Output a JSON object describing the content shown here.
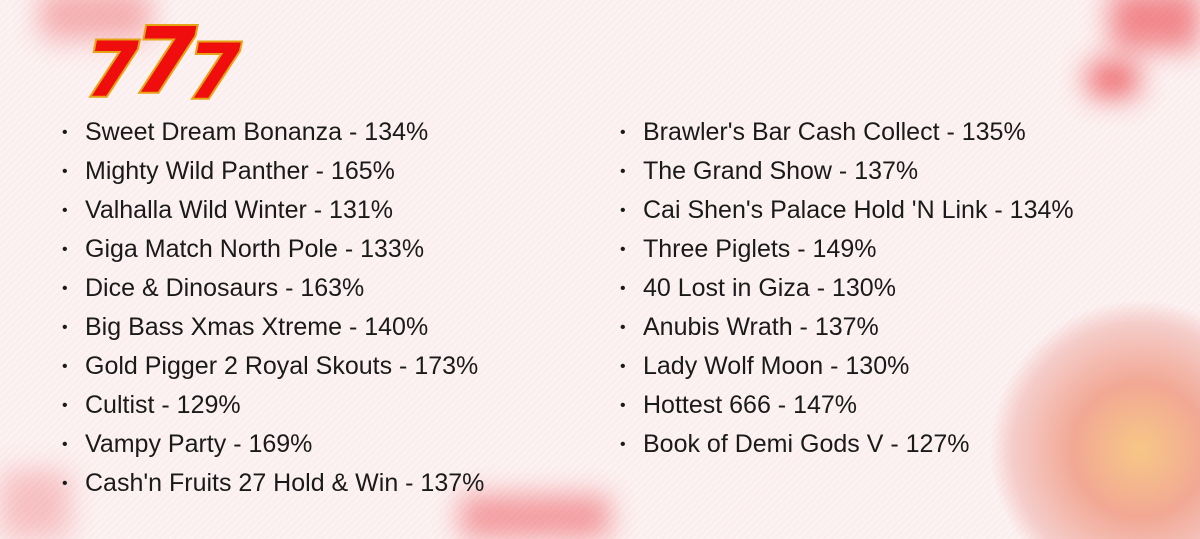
{
  "logo": {
    "text": "777",
    "icon": "slot-777-logo"
  },
  "colors": {
    "background": "#fbeeee",
    "accent": "#e8323a",
    "gold": "#f2b21c"
  },
  "left_list": [
    "Sweet Dream Bonanza - 134%",
    "Mighty Wild Panther - 165%",
    "Valhalla Wild Winter - 131%",
    "Giga Match North Pole - 133%",
    "Dice & Dinosaurs - 163%",
    "Big Bass Xmas Xtreme - 140%",
    "Gold Pigger 2 Royal Skouts - 173%",
    "Cultist - 129%",
    "Vampy Party - 169%",
    "Cash'n Fruits 27 Hold & Win - 137%"
  ],
  "right_list": [
    "Brawler's Bar Cash Collect - 135%",
    "The Grand Show - 137%",
    "Cai Shen's Palace Hold 'N Link - 134%",
    "Three Piglets - 149%",
    "40 Lost in Giza - 130%",
    "Anubis Wrath - 137%",
    "Lady Wolf Moon - 130%",
    "Hottest 666 - 147%",
    "Book of Demi Gods V - 127%"
  ],
  "bullet": "•"
}
